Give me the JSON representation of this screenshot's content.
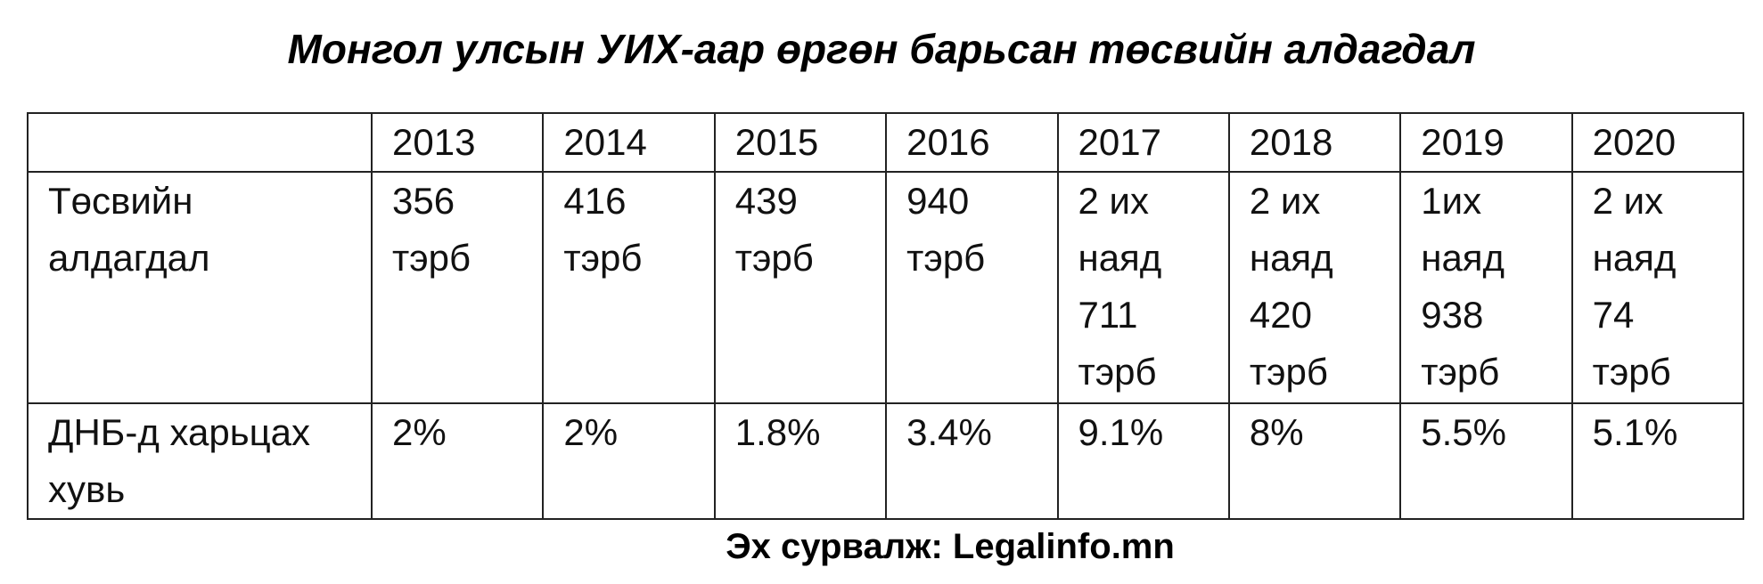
{
  "header": {
    "title": "Монгол улсын УИХ-аар өргөн барьсан төсвийн алдагдал"
  },
  "table": {
    "columns": [
      "2013",
      "2014",
      "2015",
      "2016",
      "2017",
      "2018",
      "2019",
      "2020"
    ],
    "rows": [
      {
        "label": "Төсвийн алдагдал",
        "cells": [
          "356 тэрб",
          "416 тэрб",
          "439 тэрб",
          "940 тэрб",
          "2 их наяд 711 тэрб",
          "2 их наяд 420 тэрб",
          "1их наяд 938 тэрб",
          "2 их наяд 74 тэрб"
        ]
      },
      {
        "label": "ДНБ-д харьцах хувь",
        "cells": [
          "2%",
          "2%",
          "1.8%",
          "3.4%",
          "9.1%",
          "8%",
          "5.5%",
          "5.1%"
        ]
      }
    ]
  },
  "footer": {
    "source": "Эх сурвалж: Legalinfo.mn"
  }
}
